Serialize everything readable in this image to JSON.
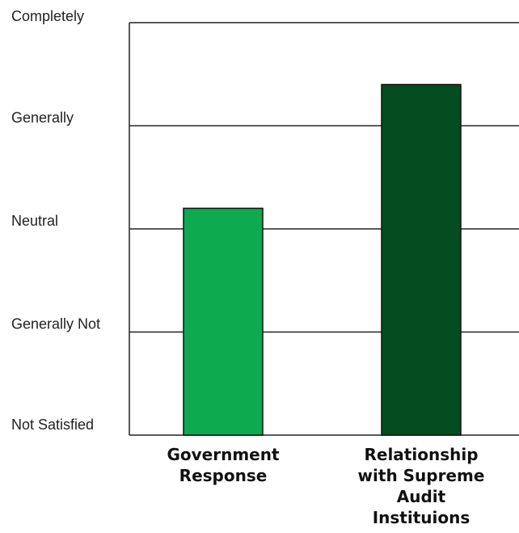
{
  "chart_data": {
    "type": "bar",
    "categories": [
      [
        "Government",
        "Response"
      ],
      [
        "Relationship",
        "with Supreme",
        "Audit",
        "Instituions"
      ]
    ],
    "values": [
      2.2,
      3.4
    ],
    "y_tick_labels": [
      "Not Satisfied",
      "Generally Not",
      "Neutral",
      "Generally",
      "Completely"
    ],
    "ylim": [
      0,
      4
    ],
    "bar_colors": [
      "#0eaa4f",
      "#044d21"
    ],
    "grid": true,
    "title": "",
    "xlabel": "",
    "ylabel": ""
  }
}
